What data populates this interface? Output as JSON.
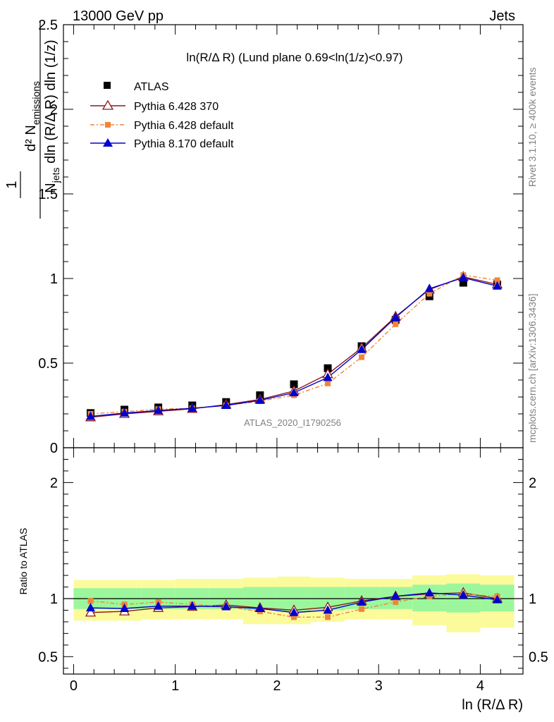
{
  "header": {
    "left": "13000 GeV pp",
    "right": "Jets"
  },
  "side_labels": {
    "rivet": "Rivet 3.1.10, ≥ 400k events",
    "mcplots": "mcplots.cern.ch [arXiv:1306.3436]"
  },
  "watermark": "ATLAS_2020_I1790256",
  "colors": {
    "atlas": "#000000",
    "py6_370": "#8b1a1a",
    "py6_default": "#f0843c",
    "py8": "#0000d0",
    "band_inner": "#9cf79c",
    "band_outer": "#fbfb9c"
  },
  "chart_data": [
    {
      "type": "scatter",
      "title": "ln(R/Δ R) (Lund plane 0.69<ln(1/z)<0.97)",
      "ylabel_prefix": "1",
      "ylabel_num": "d² N",
      "ylabel_num_sub": "emissions",
      "ylabel_den": "N",
      "ylabel_den_sub": "jets",
      "ylabel_den_rest": " dln (R/Δ R) dln (1/z)",
      "xlim": [
        -0.1,
        4.42
      ],
      "ylim": [
        0,
        2.5
      ],
      "yticks": [
        0,
        0.5,
        1,
        1.5,
        2,
        2.5
      ],
      "ytick_labels": [
        "0",
        "0.5",
        "1",
        "1.5",
        "2",
        "2.5"
      ],
      "x": [
        0.167,
        0.5,
        0.833,
        1.167,
        1.5,
        1.833,
        2.167,
        2.5,
        2.833,
        3.167,
        3.5,
        3.833,
        4.167
      ],
      "series": [
        {
          "name": "ATLAS",
          "marker": "square",
          "values": [
            0.205,
            0.225,
            0.238,
            0.25,
            0.27,
            0.31,
            0.375,
            0.47,
            0.6,
            0.755,
            0.895,
            0.975,
            0.965
          ]
        },
        {
          "name": "Pythia 6.428 370",
          "marker": "triangle-open",
          "values": [
            0.18,
            0.2,
            0.215,
            0.23,
            0.255,
            0.285,
            0.335,
            0.435,
            0.59,
            0.775,
            0.935,
            1.01,
            0.965
          ]
        },
        {
          "name": "Pythia 6.428 default",
          "marker": "square-small",
          "values": [
            0.2,
            0.213,
            0.228,
            0.233,
            0.25,
            0.275,
            0.31,
            0.38,
            0.535,
            0.73,
            0.91,
            1.02,
            0.99
          ]
        },
        {
          "name": "Pythia 8.170 default",
          "marker": "triangle",
          "values": [
            0.185,
            0.205,
            0.22,
            0.233,
            0.25,
            0.28,
            0.325,
            0.415,
            0.58,
            0.77,
            0.94,
            1.005,
            0.955
          ]
        }
      ]
    },
    {
      "type": "line",
      "ylabel": "Ratio to ATLAS",
      "xlabel": "ln (R/Δ R)",
      "xlim": [
        -0.1,
        4.42
      ],
      "ylim": [
        0.35,
        2.3
      ],
      "xticks": [
        0,
        1,
        2,
        3,
        4
      ],
      "xtick_labels": [
        "0",
        "1",
        "2",
        "3",
        "4"
      ],
      "yticks": [
        0.5,
        1,
        2
      ],
      "ytick_labels": [
        "0.5",
        "1",
        "2"
      ],
      "bin_edges": [
        0,
        0.333,
        0.667,
        1.0,
        1.333,
        1.667,
        2.0,
        2.333,
        2.667,
        3.0,
        3.333,
        3.667,
        4.0,
        4.333
      ],
      "band_inner": [
        [
          0.91,
          1.09
        ],
        [
          0.91,
          1.09
        ],
        [
          0.91,
          1.09
        ],
        [
          0.91,
          1.09
        ],
        [
          0.91,
          1.09
        ],
        [
          0.9,
          1.1
        ],
        [
          0.89,
          1.1
        ],
        [
          0.9,
          1.1
        ],
        [
          0.91,
          1.1
        ],
        [
          0.91,
          1.1
        ],
        [
          0.89,
          1.12
        ],
        [
          0.88,
          1.13
        ],
        [
          0.89,
          1.12
        ]
      ],
      "band_outer": [
        [
          0.81,
          1.16
        ],
        [
          0.81,
          1.16
        ],
        [
          0.82,
          1.16
        ],
        [
          0.82,
          1.17
        ],
        [
          0.82,
          1.17
        ],
        [
          0.78,
          1.18
        ],
        [
          0.78,
          1.19
        ],
        [
          0.8,
          1.18
        ],
        [
          0.82,
          1.17
        ],
        [
          0.82,
          1.17
        ],
        [
          0.77,
          1.2
        ],
        [
          0.71,
          1.21
        ],
        [
          0.75,
          1.2
        ]
      ],
      "x": [
        0.167,
        0.5,
        0.833,
        1.167,
        1.5,
        1.833,
        2.167,
        2.5,
        2.833,
        3.167,
        3.5,
        3.833,
        4.167
      ],
      "series": [
        {
          "name": "Pythia 6.428 370",
          "marker": "triangle-open",
          "values": [
            0.88,
            0.89,
            0.92,
            0.93,
            0.945,
            0.92,
            0.9,
            0.925,
            0.98,
            1.02,
            1.04,
            1.05,
            1.0
          ]
        },
        {
          "name": "Pythia 6.428 default",
          "marker": "square-small",
          "values": [
            0.98,
            0.95,
            0.97,
            0.95,
            0.93,
            0.89,
            0.84,
            0.84,
            0.91,
            0.97,
            1.02,
            1.04,
            1.02
          ]
        },
        {
          "name": "Pythia 8.170 default",
          "marker": "triangle",
          "values": [
            0.92,
            0.915,
            0.935,
            0.935,
            0.93,
            0.915,
            0.88,
            0.9,
            0.97,
            1.02,
            1.05,
            1.03,
            0.99
          ]
        }
      ]
    }
  ]
}
